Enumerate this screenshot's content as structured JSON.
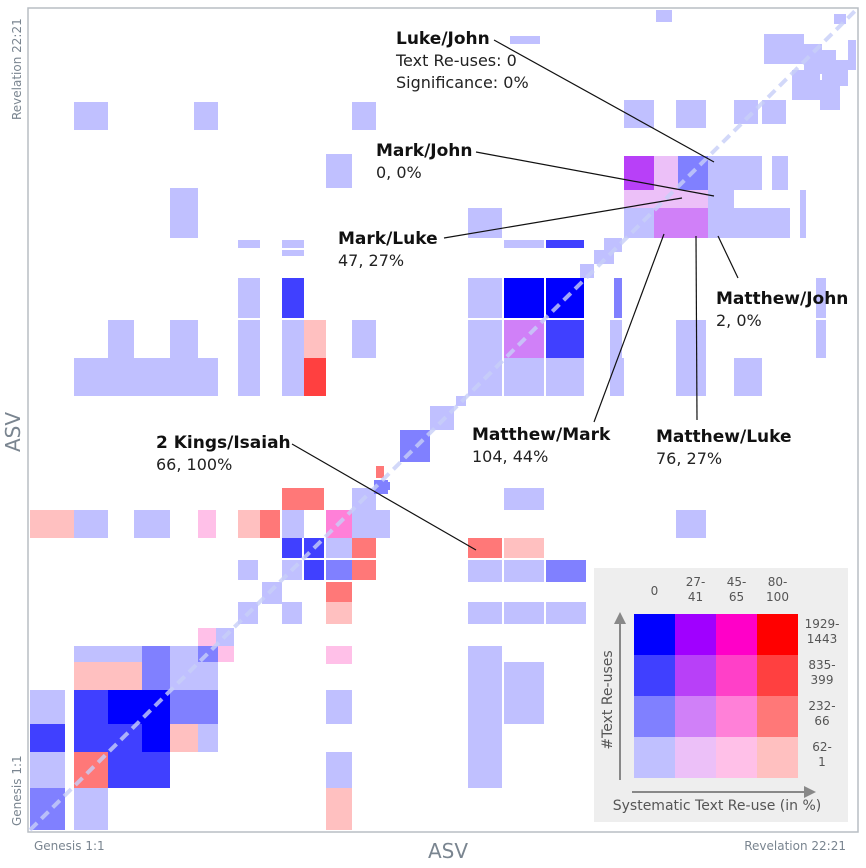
{
  "chart_data": {
    "type": "heatmap",
    "x_axis": {
      "label": "ASV",
      "start_label": "Genesis 1:1",
      "end_label": "Revelation 22:21"
    },
    "y_axis": {
      "label": "ASV",
      "start_label": "Genesis 1:1",
      "end_label": "Revelation 22:21"
    },
    "scale": {
      "count_bins": [
        "1929-1443",
        "835-399",
        "232-66",
        "62-1"
      ],
      "significance_bins": [
        "0",
        "27-41",
        "45-65",
        "80-100"
      ],
      "colors": [
        [
          "#0000ff",
          "#a000ff",
          "#ff00c8",
          "#ff0000"
        ],
        [
          "#4040ff",
          "#b840f8",
          "#ff40c8",
          "#ff4040"
        ],
        [
          "#8080ff",
          "#d080f8",
          "#ff80d8",
          "#ff7878"
        ],
        [
          "#c0c0ff",
          "#ecc0f8",
          "#ffc0e8",
          "#ffc0c0"
        ]
      ]
    },
    "annotations": [
      {
        "pair": "Luke/John",
        "lines": [
          "Text Re-uses: 0",
          "Significance: 0%"
        ],
        "reuses": 0,
        "significance": 0
      },
      {
        "pair": "Mark/John",
        "lines": [
          "0, 0%"
        ],
        "reuses": 0,
        "significance": 0
      },
      {
        "pair": "Mark/Luke",
        "lines": [
          "47, 27%"
        ],
        "reuses": 47,
        "significance": 27
      },
      {
        "pair": "Matthew/John",
        "lines": [
          "2, 0%"
        ],
        "reuses": 2,
        "significance": 0
      },
      {
        "pair": "Matthew/Mark",
        "lines": [
          "104, 44%"
        ],
        "reuses": 104,
        "significance": 44
      },
      {
        "pair": "Matthew/Luke",
        "lines": [
          "76, 27%"
        ],
        "reuses": 76,
        "significance": 27
      },
      {
        "pair": "2 Kings/Isaiah",
        "lines": [
          "66, 100%"
        ],
        "reuses": 66,
        "significance": 100
      }
    ],
    "legend": {
      "x_label": "Systematic Text Re-use (in %)",
      "y_label": "#Text Re-uses",
      "columns": [
        "0",
        "27-41",
        "45-65",
        "80-100"
      ],
      "rows": [
        "1929-1443",
        "835-399",
        "232-66",
        "62-1"
      ]
    }
  }
}
